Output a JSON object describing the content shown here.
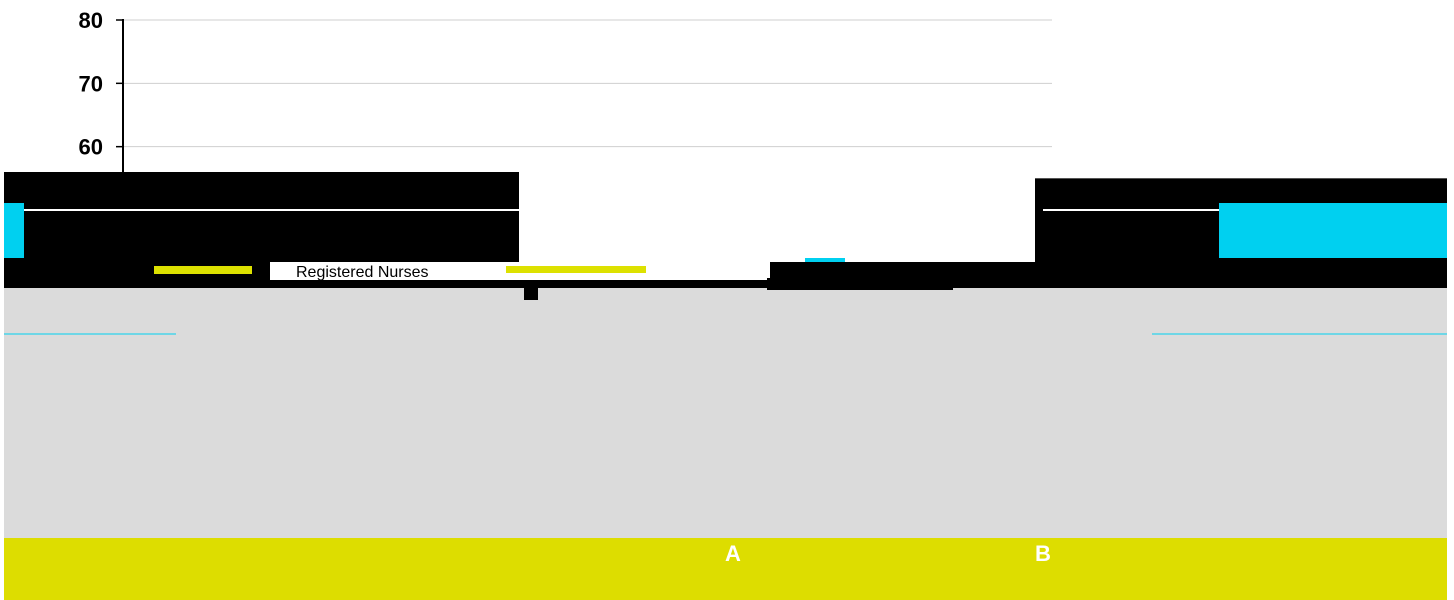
{
  "chart_data": {
    "type": "bar",
    "title": "",
    "xlabel": "",
    "ylabel": "",
    "ylim": [
      0,
      80
    ],
    "yticks": [
      60,
      70,
      80
    ],
    "grid": true,
    "legend_position": "center",
    "categories": [
      "A",
      "B"
    ],
    "series": [
      {
        "name": "Registered Nurses",
        "values": [
          53,
          52
        ]
      }
    ],
    "colors": {
      "plot_panel": "#dbdbdb",
      "category_band": "#dddd00",
      "accent_cyan": "#00d0f0",
      "legend_yellow": "#dde100",
      "grid": "#cfcfcf",
      "obscured_block": "#000000"
    }
  }
}
